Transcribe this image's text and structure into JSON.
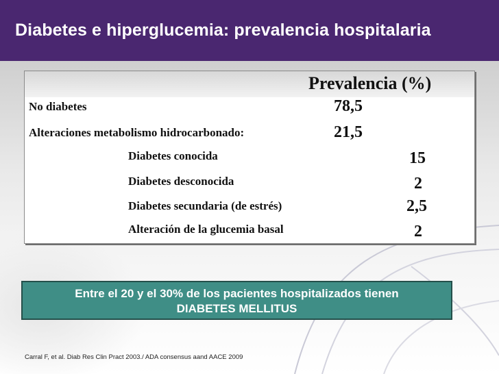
{
  "header": {
    "title": "Diabetes e hiperglucemia: prevalencia hospitalaria",
    "color": "#4a2770"
  },
  "table": {
    "column_header": "Prevalencia (%)",
    "rows": [
      {
        "label": "No diabetes",
        "value": "78,5"
      },
      {
        "label": "Alteraciones metabolismo hidrocarbonado:",
        "value": "21,5"
      },
      {
        "label": "Diabetes conocida",
        "value": "15"
      },
      {
        "label": "Diabetes desconocida",
        "value": "2"
      },
      {
        "label": "Diabetes secundaria (de estrés)",
        "value": "2,5"
      },
      {
        "label": "Alteración de la glucemia basal",
        "value": "2"
      }
    ]
  },
  "note": {
    "line1": "Entre el 20 y el 30% de los pacientes hospitalizados tienen",
    "line2": "DIABETES MELLITUS",
    "color": "#3f8e86"
  },
  "citation": "Carral F, et al. Diab Res Clin Pract 2003./  ADA consensus aand AACE 2009"
}
